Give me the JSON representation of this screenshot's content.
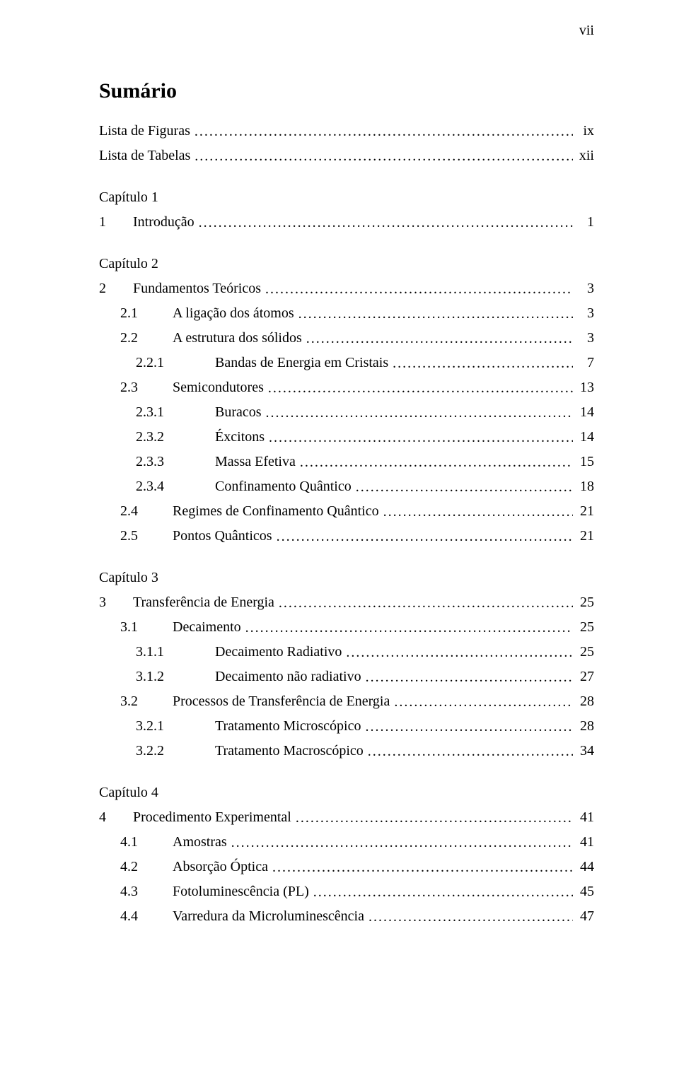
{
  "page_number_top": "vii",
  "title": "Sumário",
  "prelude": [
    {
      "label": "Lista de Figuras",
      "page": "ix"
    },
    {
      "label": "Lista de Tabelas",
      "page": "xii"
    }
  ],
  "chapters": [
    {
      "chapter_label": "Capítulo 1",
      "entries": [
        {
          "level": 0,
          "num": "1",
          "label": "Introdução",
          "page": "1"
        }
      ]
    },
    {
      "chapter_label": "Capítulo 2",
      "entries": [
        {
          "level": 0,
          "num": "2",
          "label": "Fundamentos Teóricos",
          "page": "3"
        },
        {
          "level": 1,
          "num": "2.1",
          "label": "A ligação dos átomos",
          "page": "3"
        },
        {
          "level": 1,
          "num": "2.2",
          "label": "A estrutura dos sólidos",
          "page": "3"
        },
        {
          "level": 2,
          "num": "2.2.1",
          "label": "Bandas de Energia em Cristais",
          "page": "7"
        },
        {
          "level": 1,
          "num": "2.3",
          "label": "Semicondutores",
          "page": "13"
        },
        {
          "level": 2,
          "num": "2.3.1",
          "label": "Buracos",
          "page": "14"
        },
        {
          "level": 2,
          "num": "2.3.2",
          "label": "Éxcitons",
          "page": "14"
        },
        {
          "level": 2,
          "num": "2.3.3",
          "label": "Massa Efetiva",
          "page": "15"
        },
        {
          "level": 2,
          "num": "2.3.4",
          "label": "Confinamento Quântico",
          "page": "18"
        },
        {
          "level": 1,
          "num": "2.4",
          "label": "Regimes de Confinamento Quântico",
          "page": "21"
        },
        {
          "level": 1,
          "num": "2.5",
          "label": "Pontos Quânticos",
          "page": "21"
        }
      ]
    },
    {
      "chapter_label": "Capítulo 3",
      "entries": [
        {
          "level": 0,
          "num": "3",
          "label": "Transferência de Energia",
          "page": "25"
        },
        {
          "level": 1,
          "num": "3.1",
          "label": "Decaimento",
          "page": "25"
        },
        {
          "level": 2,
          "num": "3.1.1",
          "label": "Decaimento Radiativo",
          "page": "25"
        },
        {
          "level": 2,
          "num": "3.1.2",
          "label": "Decaimento não radiativo",
          "page": "27"
        },
        {
          "level": 1,
          "num": "3.2",
          "label": "Processos de Transferência de Energia",
          "page": "28"
        },
        {
          "level": 2,
          "num": "3.2.1",
          "label": "Tratamento Microscópico",
          "page": "28"
        },
        {
          "level": 2,
          "num": "3.2.2",
          "label": "Tratamento Macroscópico",
          "page": "34"
        }
      ]
    },
    {
      "chapter_label": "Capítulo 4",
      "entries": [
        {
          "level": 0,
          "num": "4",
          "label": "Procedimento Experimental",
          "page": "41"
        },
        {
          "level": 1,
          "num": "4.1",
          "label": "Amostras",
          "page": "41"
        },
        {
          "level": 1,
          "num": "4.2",
          "label": "Absorção Óptica",
          "page": "44"
        },
        {
          "level": 1,
          "num": "4.3",
          "label": "Fotoluminescência (PL)",
          "page": "45"
        },
        {
          "level": 1,
          "num": "4.4",
          "label": "Varredura da Microluminescência",
          "page": "47"
        }
      ]
    }
  ]
}
